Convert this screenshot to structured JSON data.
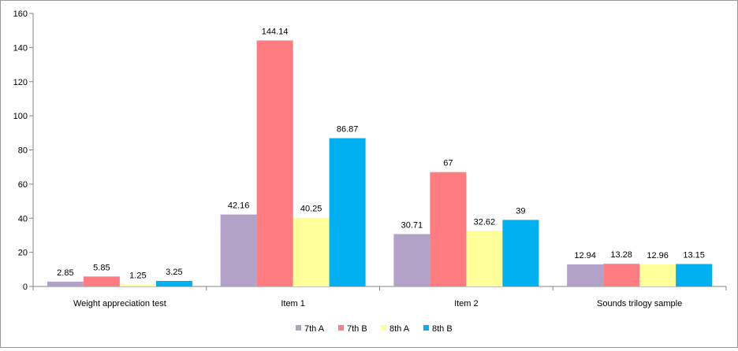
{
  "chart_data": {
    "type": "bar",
    "title": "",
    "xlabel": "",
    "ylabel": "",
    "ylim": [
      0,
      160
    ],
    "yticks": [
      0,
      20,
      40,
      60,
      80,
      100,
      120,
      140,
      160
    ],
    "grid": false,
    "legend_position": "bottom",
    "categories": [
      "Weight appreciation test",
      "Item 1",
      "Item 2",
      "Sounds trilogy sample"
    ],
    "series": [
      {
        "name": "7th A",
        "color": "#b3a2c7",
        "values": [
          2.85,
          42.16,
          30.71,
          12.94
        ],
        "labels": [
          "2.85",
          "42.16",
          "30.71",
          "12.94"
        ]
      },
      {
        "name": "7th B",
        "color": "#ff7c80",
        "values": [
          5.85,
          144.14,
          67,
          13.28
        ],
        "labels": [
          "5.85",
          "144.14",
          "67",
          "13.28"
        ]
      },
      {
        "name": "8th A",
        "color": "#ffff99",
        "values": [
          1.25,
          40.25,
          32.62,
          12.96
        ],
        "labels": [
          "1.25",
          "40.25",
          "32.62",
          "12.96"
        ]
      },
      {
        "name": "8th B",
        "color": "#00b0f0",
        "values": [
          3.25,
          86.87,
          39,
          13.15
        ],
        "labels": [
          "3.25",
          "86.87",
          "39",
          "13.15"
        ]
      }
    ]
  }
}
